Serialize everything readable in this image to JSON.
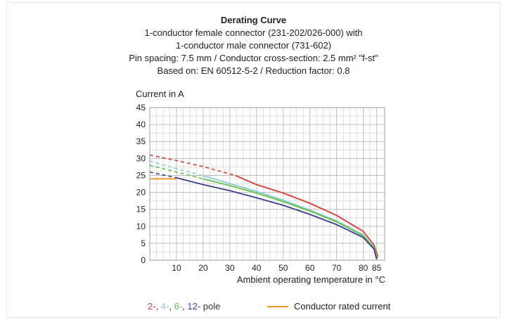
{
  "chart_data": {
    "type": "line",
    "title": "Derating Curve",
    "subtitle_lines": [
      "1-conductor female connector (231-202/026-000) with",
      "1-conductor male connector (731-602)",
      "Pin spacing: 7.5 mm / Conductor cross-section: 2.5 mm² \"f-st\"",
      "Based on: EN 60512-5-2 / Reduction factor: 0.8"
    ],
    "ylabel": "Current in A",
    "xlabel": "Ambient operating temperature in °C",
    "xlim": [
      0,
      88
    ],
    "ylim": [
      0,
      45
    ],
    "x_ticks": [
      10,
      20,
      30,
      40,
      50,
      60,
      70,
      80,
      85
    ],
    "x_ticks_text": [
      "10",
      "20",
      "30",
      "40",
      "50",
      "60",
      "70",
      "80",
      "85"
    ],
    "y_ticks": [
      0,
      5,
      10,
      15,
      20,
      25,
      30,
      35,
      40,
      45
    ],
    "y_ticks_text": [
      "0",
      "5",
      "10",
      "15",
      "20",
      "25",
      "30",
      "35",
      "40",
      "45"
    ],
    "grid": true,
    "series": [
      {
        "name": "2-",
        "color": "#d63c35",
        "dashed_until": 32,
        "points": [
          [
            0,
            31.0
          ],
          [
            10,
            29.4
          ],
          [
            20,
            27.6
          ],
          [
            32,
            25.0
          ],
          [
            40,
            22.3
          ],
          [
            50,
            19.8
          ],
          [
            60,
            16.8
          ],
          [
            70,
            13.2
          ],
          [
            80,
            8.5
          ],
          [
            84,
            4.5
          ],
          [
            85.5,
            1.0
          ]
        ]
      },
      {
        "name": "4-",
        "color": "#8ccbd8",
        "dashed_until": 20,
        "points": [
          [
            0,
            29.3
          ],
          [
            10,
            27.0
          ],
          [
            20,
            24.9
          ],
          [
            30,
            22.6
          ],
          [
            40,
            20.3
          ],
          [
            50,
            17.7
          ],
          [
            60,
            14.8
          ],
          [
            70,
            11.6
          ],
          [
            80,
            7.5
          ],
          [
            84,
            3.8
          ],
          [
            85.3,
            0.5
          ]
        ]
      },
      {
        "name": "6-",
        "color": "#6abf4b",
        "dashed_until": 20,
        "points": [
          [
            0,
            28.0
          ],
          [
            10,
            26.0
          ],
          [
            20,
            24.0
          ],
          [
            30,
            22.0
          ],
          [
            40,
            19.8
          ],
          [
            50,
            17.3
          ],
          [
            60,
            14.5
          ],
          [
            70,
            11.3
          ],
          [
            80,
            7.2
          ],
          [
            84,
            3.6
          ],
          [
            85.2,
            0.5
          ]
        ]
      },
      {
        "name": "12-",
        "color": "#3b3f8c",
        "dashed_until": 10,
        "points": [
          [
            0,
            26.0
          ],
          [
            10,
            24.3
          ],
          [
            20,
            22.3
          ],
          [
            30,
            20.5
          ],
          [
            40,
            18.4
          ],
          [
            50,
            16.2
          ],
          [
            60,
            13.5
          ],
          [
            70,
            10.5
          ],
          [
            80,
            6.7
          ],
          [
            84,
            3.3
          ],
          [
            85,
            0.3
          ]
        ]
      },
      {
        "name": "Conductor rated current",
        "color": "#f39325",
        "points": [
          [
            0,
            24
          ],
          [
            10,
            24
          ]
        ]
      }
    ],
    "legend": {
      "pole_items": [
        {
          "text": "2-",
          "color": "#d63c35"
        },
        {
          "text": ", ",
          "color": "#333333"
        },
        {
          "text": "4-",
          "color": "#8ccbd8"
        },
        {
          "text": ", ",
          "color": "#333333"
        },
        {
          "text": "6-",
          "color": "#6abf4b"
        },
        {
          "text": ", ",
          "color": "#333333"
        },
        {
          "text": "12-",
          "color": "#3b3f8c"
        },
        {
          "text": " pole",
          "color": "#333333"
        }
      ],
      "rated_label": "Conductor rated current",
      "placement": "bottom"
    }
  }
}
